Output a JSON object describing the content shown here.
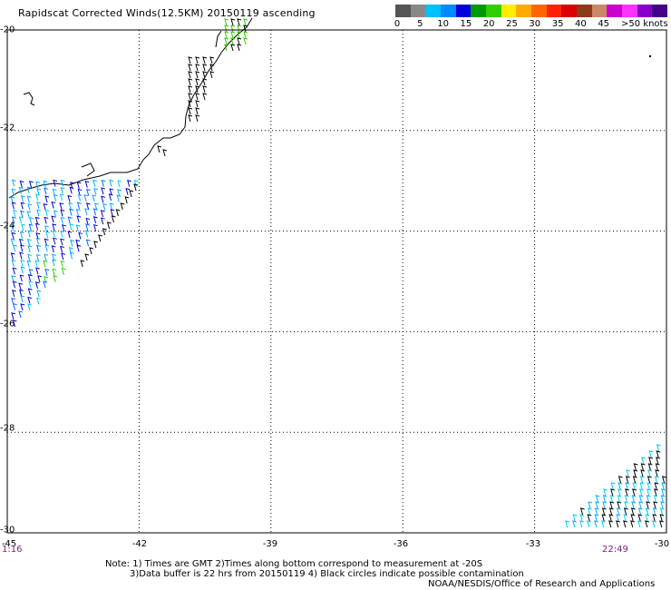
{
  "title": "Rapidscat Corrected Winds(12.5KM) 20150119 ascending",
  "legend": {
    "colors": [
      "#555555",
      "#888888",
      "#00bfff",
      "#0088ff",
      "#0000dd",
      "#009900",
      "#33cc00",
      "#ffee00",
      "#ffaa00",
      "#ff6600",
      "#ff2200",
      "#dd0000",
      "#8b3a1a",
      "#cc8866",
      "#cc00cc",
      "#ff33ff",
      "#8800cc",
      "#440088"
    ],
    "labels": [
      "0",
      "5",
      "10",
      "15",
      "20",
      "25",
      "30",
      "35",
      "40",
      "45",
      ">50 knots"
    ]
  },
  "map": {
    "lat_labels": [
      "-20",
      "-22",
      "-24",
      "-26",
      "-28",
      "-30"
    ],
    "lon_labels": [
      "-45",
      "-42",
      "-39",
      "-36",
      "-33",
      "-30"
    ],
    "lat_range": [
      -30,
      -20
    ],
    "lon_range": [
      -45,
      -30
    ]
  },
  "times": {
    "left": "1:16",
    "right": "22:49"
  },
  "notes": {
    "line1": "Note: 1) Times are GMT 2)Times along bottom correspond to measurement at -20S",
    "line2": "3)Data buffer is 22 hrs from 20150119 4) Black circles indicate possible contamination",
    "line3": "NOAA/NESDIS/Office of Research and Applications"
  }
}
